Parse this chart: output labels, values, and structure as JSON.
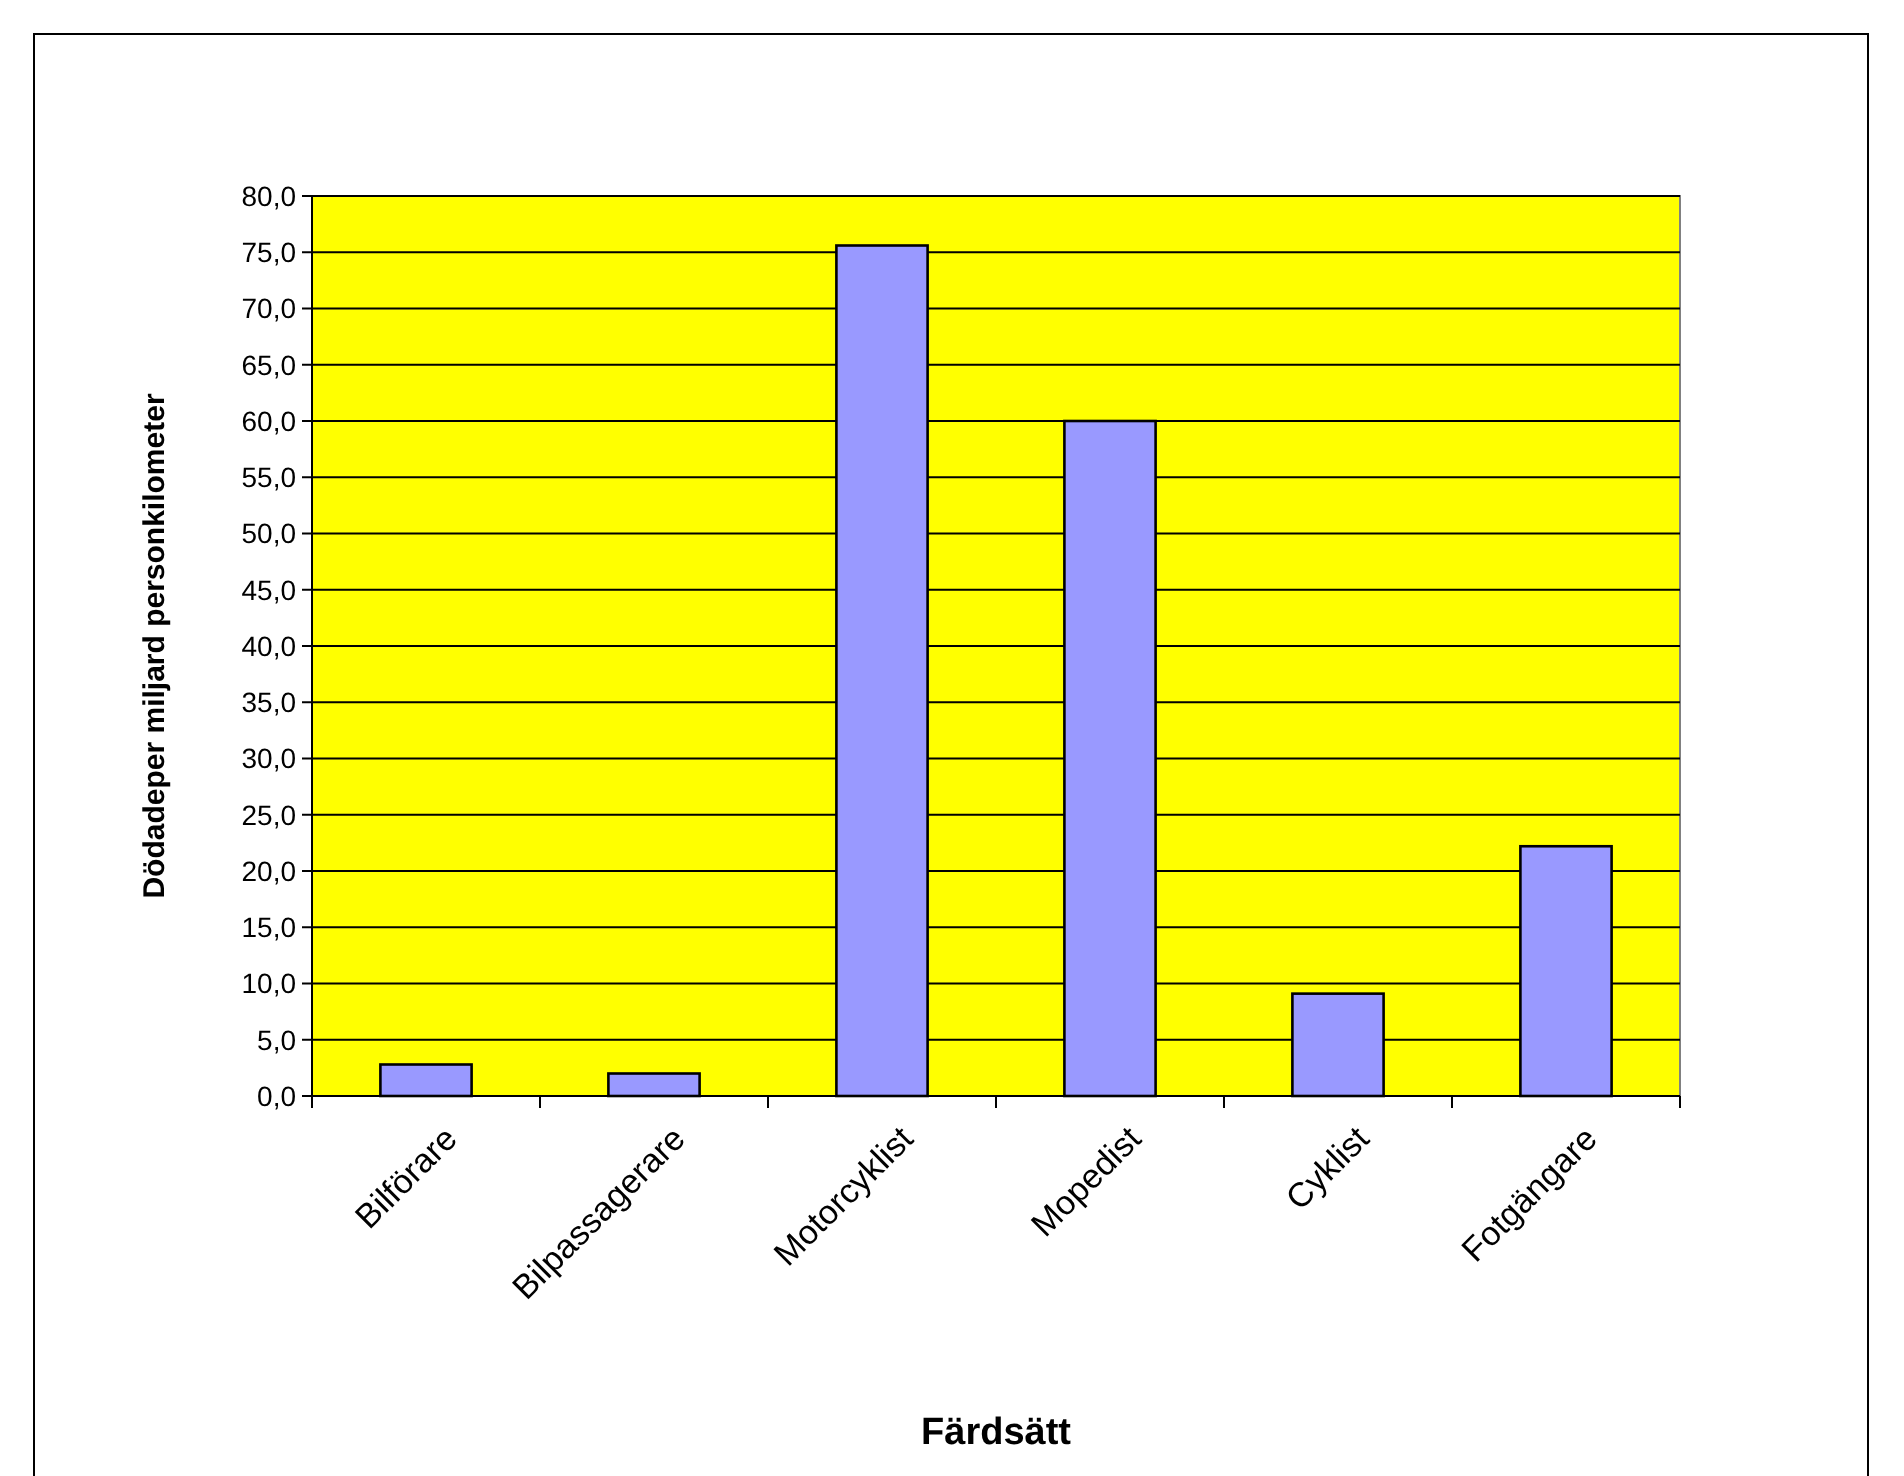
{
  "chart_data": {
    "type": "bar",
    "xlabel": "Färdsätt",
    "ylabel": "Dödadeper miljard personkilometer",
    "categories": [
      "Bilförare",
      "Bilpassagerare",
      "Motorcyklist",
      "Mopedist",
      "Cyklist",
      "Fotgängare"
    ],
    "values": [
      2.8,
      2.0,
      75.6,
      60.0,
      9.1,
      22.2
    ],
    "color": "#9999ff",
    "ylim": [
      0,
      80
    ],
    "yticks": [
      {
        "value": 0,
        "label": "0,0"
      },
      {
        "value": 5,
        "label": "5,0"
      },
      {
        "value": 10,
        "label": "10,0"
      },
      {
        "value": 15,
        "label": "15,0"
      },
      {
        "value": 20,
        "label": "20,0"
      },
      {
        "value": 25,
        "label": "25,0"
      },
      {
        "value": 30,
        "label": "30,0"
      },
      {
        "value": 35,
        "label": "35,0"
      },
      {
        "value": 40,
        "label": "40,0"
      },
      {
        "value": 45,
        "label": "45,0"
      },
      {
        "value": 50,
        "label": "50,0"
      },
      {
        "value": 55,
        "label": "55,0"
      },
      {
        "value": 60,
        "label": "60,0"
      },
      {
        "value": 65,
        "label": "65,0"
      },
      {
        "value": 70,
        "label": "70,0"
      },
      {
        "value": 75,
        "label": "75,0"
      },
      {
        "value": 80,
        "label": "80,0"
      }
    ],
    "grid": "y"
  }
}
